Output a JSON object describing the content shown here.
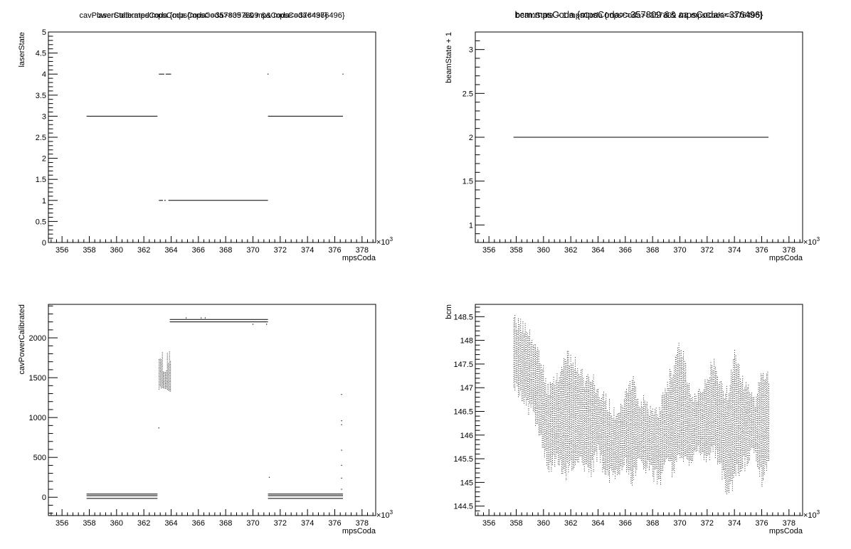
{
  "chart_data": [
    {
      "type": "scatter",
      "title": "laserState:mpsCoda {mpsCoda>=357809 && mpsCoda<=376496}",
      "xlabel": "mpsCoda",
      "ylabel": "laserState",
      "x_multiplier": "×10",
      "x_multiplier_exp": "3",
      "xlim": [
        355,
        379
      ],
      "ylim": [
        0,
        5
      ],
      "x_ticks": [
        356,
        358,
        360,
        362,
        364,
        366,
        368,
        370,
        372,
        374,
        376,
        378
      ],
      "x_tick_labels": [
        "356",
        "358",
        "360",
        "362",
        "364",
        "366",
        "368",
        "370",
        "372",
        "374",
        "376",
        "378"
      ],
      "y_ticks": [
        0,
        0.5,
        1,
        1.5,
        2,
        2.5,
        3,
        3.5,
        4,
        4.5,
        5
      ],
      "y_tick_labels": [
        "0",
        "0.5",
        "1",
        "1.5",
        "2",
        "2.5",
        "3",
        "3.5",
        "4",
        "4.5",
        "5"
      ],
      "segments": [
        {
          "x": [
            357.8,
            363.0
          ],
          "y": 3
        },
        {
          "x": [
            363.1,
            363.5
          ],
          "y": 4
        },
        {
          "x": [
            363.6,
            364.0
          ],
          "y": 4
        },
        {
          "x": [
            363.1,
            363.4
          ],
          "y": 1
        },
        {
          "x": [
            363.5,
            363.6
          ],
          "y": 1
        },
        {
          "x": [
            363.8,
            371.1
          ],
          "y": 1
        },
        {
          "x": [
            371.1,
            376.6
          ],
          "y": 3
        }
      ],
      "points": [
        {
          "x": 371.1,
          "y": 4
        },
        {
          "x": 376.6,
          "y": 4
        }
      ]
    },
    {
      "type": "scatter",
      "title": "beamState + 1:mpsCoda {mpsCoda>=357809 && mpsCoda<=376496}",
      "xlabel": "mpsCoda",
      "ylabel": "beamState + 1",
      "x_multiplier": "×10",
      "x_multiplier_exp": "3",
      "xlim": [
        355,
        379
      ],
      "ylim": [
        0.8,
        3.2
      ],
      "x_ticks": [
        356,
        358,
        360,
        362,
        364,
        366,
        368,
        370,
        372,
        374,
        376,
        378
      ],
      "x_tick_labels": [
        "356",
        "358",
        "360",
        "362",
        "364",
        "366",
        "368",
        "370",
        "372",
        "374",
        "376",
        "378"
      ],
      "y_ticks": [
        1,
        1.5,
        2,
        2.5,
        3
      ],
      "y_tick_labels": [
        "1",
        "1.5",
        "2",
        "2.5",
        "3"
      ],
      "segments": [
        {
          "x": [
            357.8,
            376.5
          ],
          "y": 2
        }
      ],
      "points": []
    },
    {
      "type": "scatter",
      "title": "cavPowerCalibrated:mpsCoda {mpsCoda>=357809 && mpsCoda<=376496}",
      "xlabel": "mpsCoda",
      "ylabel": "cavPowerCalibrated",
      "x_multiplier": "×10",
      "x_multiplier_exp": "3",
      "xlim": [
        355,
        379
      ],
      "ylim": [
        -230,
        2420
      ],
      "x_ticks": [
        356,
        358,
        360,
        362,
        364,
        366,
        368,
        370,
        372,
        374,
        376,
        378
      ],
      "x_tick_labels": [
        "356",
        "358",
        "360",
        "362",
        "364",
        "366",
        "368",
        "370",
        "372",
        "374",
        "376",
        "378"
      ],
      "y_ticks": [
        0,
        500,
        1000,
        1500,
        2000
      ],
      "y_tick_labels": [
        "0",
        "500",
        "1000",
        "1500",
        "2000"
      ],
      "segments": [
        {
          "x": [
            357.8,
            363.0
          ],
          "y": 40
        },
        {
          "x": [
            357.8,
            363.0
          ],
          "y": 20
        },
        {
          "x": [
            357.8,
            363.0
          ],
          "y": -15
        },
        {
          "x": [
            363.9,
            371.1
          ],
          "y": 2230
        },
        {
          "x": [
            363.9,
            371.1
          ],
          "y": 2200
        },
        {
          "x": [
            371.1,
            376.6
          ],
          "y": 40
        },
        {
          "x": [
            371.1,
            376.6
          ],
          "y": 20
        },
        {
          "x": [
            371.1,
            376.6
          ],
          "y": -15
        }
      ],
      "bands": [
        {
          "x": [
            363.1,
            363.4
          ],
          "y": [
            1340,
            1850
          ]
        },
        {
          "x": [
            363.4,
            363.7
          ],
          "y": [
            1350,
            1650
          ]
        },
        {
          "x": [
            363.7,
            364.0
          ],
          "y": [
            1300,
            1850
          ]
        }
      ],
      "points": [
        {
          "x": 363.1,
          "y": 870
        },
        {
          "x": 365.1,
          "y": 2250
        },
        {
          "x": 366.2,
          "y": 2250
        },
        {
          "x": 366.5,
          "y": 2250
        },
        {
          "x": 370.0,
          "y": 2170
        },
        {
          "x": 371.0,
          "y": 2170
        },
        {
          "x": 371.2,
          "y": 250
        },
        {
          "x": 376.5,
          "y": 1290
        },
        {
          "x": 376.5,
          "y": 960
        },
        {
          "x": 376.5,
          "y": 910
        },
        {
          "x": 376.5,
          "y": 590
        },
        {
          "x": 376.5,
          "y": 400
        },
        {
          "x": 376.5,
          "y": 240
        },
        {
          "x": 376.5,
          "y": 100
        }
      ]
    },
    {
      "type": "scatter",
      "title": "bcm:mpsCoda {mpsCoda>=357809 && mpsCoda<=376496}",
      "xlabel": "mpsCoda",
      "ylabel": "bcm",
      "x_multiplier": "×10",
      "x_multiplier_exp": "3",
      "xlim": [
        355,
        379
      ],
      "ylim": [
        144.3,
        148.76
      ],
      "x_ticks": [
        356,
        358,
        360,
        362,
        364,
        366,
        368,
        370,
        372,
        374,
        376,
        378
      ],
      "x_tick_labels": [
        "356",
        "358",
        "360",
        "362",
        "364",
        "366",
        "368",
        "370",
        "372",
        "374",
        "376",
        "378"
      ],
      "y_ticks": [
        144.5,
        145,
        145.5,
        146,
        146.5,
        147,
        147.5,
        148,
        148.5
      ],
      "y_tick_labels": [
        "144.5",
        "145",
        "145.5",
        "146",
        "146.5",
        "147",
        "147.5",
        "148",
        "148.5"
      ],
      "x_range": [
        357.8,
        376.5
      ],
      "envelope": {
        "x": [
          357.8,
          358.5,
          359.2,
          359.8,
          360.3,
          361.0,
          361.5,
          362.0,
          362.5,
          363.0,
          363.5,
          364.0,
          364.5,
          365.0,
          365.5,
          366.0,
          366.5,
          367.0,
          367.5,
          368.0,
          368.5,
          369.0,
          369.5,
          370.0,
          370.5,
          371.0,
          371.5,
          372.0,
          372.5,
          373.0,
          373.5,
          374.0,
          374.5,
          375.0,
          375.5,
          376.0,
          376.5
        ],
        "lower": [
          147.0,
          146.7,
          146.4,
          145.9,
          145.2,
          145.4,
          145.1,
          145.3,
          145.4,
          145.3,
          145.2,
          145.6,
          145.0,
          145.1,
          145.2,
          145.3,
          145.0,
          145.4,
          145.3,
          145.1,
          145.0,
          145.3,
          145.2,
          145.6,
          145.4,
          145.5,
          145.7,
          145.4,
          145.6,
          145.2,
          144.6,
          145.1,
          145.3,
          145.4,
          145.6,
          145.0,
          145.5
        ],
        "upper": [
          148.5,
          148.3,
          148.1,
          147.6,
          147.0,
          147.3,
          147.7,
          147.7,
          147.5,
          147.2,
          147.3,
          147.0,
          146.8,
          146.6,
          146.5,
          147.0,
          147.2,
          146.8,
          146.7,
          146.5,
          146.6,
          147.1,
          147.5,
          148.0,
          147.3,
          146.8,
          146.9,
          147.3,
          147.6,
          147.1,
          146.9,
          147.9,
          147.2,
          147.0,
          146.8,
          147.4,
          147.2
        ]
      }
    }
  ]
}
